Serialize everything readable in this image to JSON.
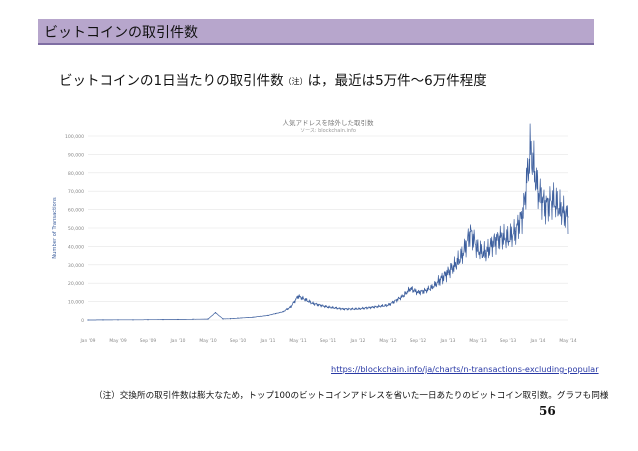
{
  "slide": {
    "section_title": "ビットコインの取引件数",
    "headline_main": "ビットコインの1日当たりの取引件数",
    "headline_note": "（注）",
    "headline_rest": "は，最近は5万件～6万件程度",
    "source_url": "https://blockchain.info/ja/charts/n-transactions-excluding-popular",
    "footnote": "（注）交換所の取引件数は膨大なため，トップ100のビットコインアドレスを省いた一日あたりのビットコイン取引数。グラフも同様",
    "page_number": "56"
  },
  "colors": {
    "header_bg": "#b7a6cc",
    "header_border": "#7f6ea3",
    "series": "#3d5f9e",
    "axis_text": "#888888",
    "ylabel": "#3d5f9e",
    "grid": "#e6e6e6"
  },
  "chart_data": {
    "type": "line",
    "title": "人気アドレスを除外した取引数",
    "subtitle": "ソース: blockchain.info",
    "xlabel": "",
    "ylabel": "Number of Transactions",
    "ylim": [
      0,
      100000
    ],
    "y_ticks": [
      0,
      10000,
      20000,
      30000,
      40000,
      50000,
      60000,
      70000,
      80000,
      90000,
      100000
    ],
    "y_tick_labels": [
      "0",
      "10,000",
      "20,000",
      "30,000",
      "40,000",
      "50,000",
      "60,000",
      "70,000",
      "80,000",
      "90,000",
      "100,000"
    ],
    "x_tick_labels": [
      "Jan '09",
      "May '09",
      "Sep '09",
      "Jan '10",
      "May '10",
      "Sep '10",
      "Jan '11",
      "May '11",
      "Sep '11",
      "Jan '12",
      "May '12",
      "Sep '12",
      "Jan '13",
      "May '13",
      "Sep '13",
      "Jan '14",
      "May '14"
    ],
    "grid": true,
    "legend": "none",
    "series": [
      {
        "x": [
          "Jan '09",
          "Mar '09",
          "May '09",
          "Jul '09",
          "Sep '09",
          "Nov '09",
          "Jan '10",
          "Mar '10",
          "May '10",
          "Jun '10",
          "Jul '10",
          "Aug '10",
          "Sep '10",
          "Nov '10",
          "Jan '11",
          "Feb '11",
          "Mar '11",
          "Apr '11",
          "May '11",
          "Jun '11",
          "Jul '11",
          "Aug '11",
          "Sep '11",
          "Nov '11",
          "Jan '12",
          "Mar '12",
          "May '12",
          "Jul '12",
          "Aug '12",
          "Sep '12",
          "Oct '12",
          "Nov '12",
          "Dec '12",
          "Jan '13",
          "Feb '13",
          "Mar '13",
          "Apr '13",
          "May '13",
          "Jun '13",
          "Jul '13",
          "Aug '13",
          "Sep '13",
          "Oct '13",
          "Nov '13",
          "Dec '13",
          "Jan '14",
          "Feb '14",
          "Mar '14",
          "Apr '14",
          "May '14"
        ],
        "values": [
          0,
          50,
          100,
          100,
          150,
          200,
          300,
          400,
          500,
          4000,
          600,
          700,
          1000,
          1500,
          2500,
          3500,
          4500,
          7000,
          13000,
          11000,
          9000,
          8000,
          7000,
          6000,
          6000,
          7000,
          8000,
          13000,
          17000,
          15000,
          16000,
          18000,
          22000,
          26000,
          30000,
          36000,
          48000,
          38000,
          36000,
          42000,
          45000,
          44000,
          48000,
          58000,
          93000,
          70000,
          62000,
          65000,
          60000,
          56000
        ]
      }
    ]
  }
}
